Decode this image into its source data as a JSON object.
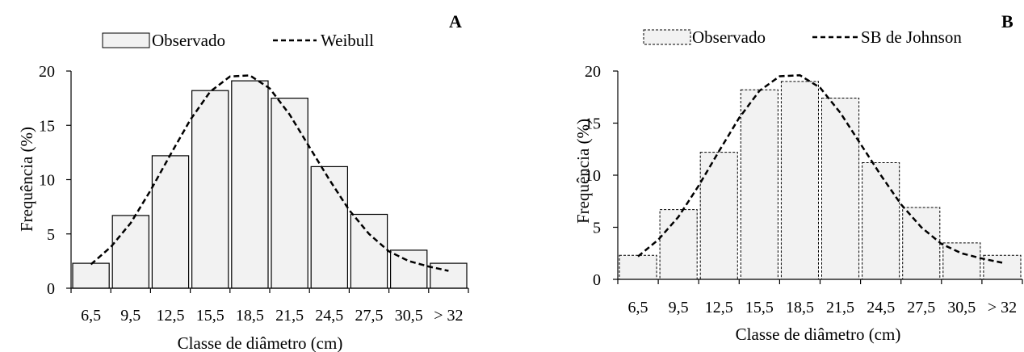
{
  "chart_data": [
    {
      "panel": "A",
      "type": "bar",
      "categories": [
        "6,5",
        "9,5",
        "12,5",
        "15,5",
        "18,5",
        "21,5",
        "24,5",
        "27,5",
        "30,5",
        "> 32"
      ],
      "series": [
        {
          "name": "Observado",
          "values": [
            2.3,
            6.7,
            12.2,
            18.2,
            19.1,
            17.5,
            11.2,
            6.8,
            3.5,
            2.3
          ]
        },
        {
          "name": "Weibull",
          "type": "line",
          "x": [
            1,
            1.5,
            2,
            2.5,
            3,
            3.5,
            4,
            4.5,
            5,
            5.5,
            6,
            6.5,
            7,
            7.5,
            8,
            8.5,
            9,
            9.5,
            10
          ],
          "values": [
            2.2,
            3.8,
            6.0,
            9.0,
            12.3,
            15.5,
            18.1,
            19.5,
            19.6,
            18.4,
            16.0,
            13.0,
            10.0,
            7.2,
            5.0,
            3.4,
            2.5,
            2.0,
            1.6
          ]
        }
      ],
      "xlabel": "Classe de diâmetro (cm)",
      "ylabel": "Frequência (%)",
      "ylim": [
        0,
        20
      ],
      "yticks": [
        0,
        5,
        10,
        15,
        20
      ],
      "bar_style": "solid",
      "legend": "top-center",
      "grid": false
    },
    {
      "panel": "B",
      "type": "bar",
      "categories": [
        "6,5",
        "9,5",
        "12,5",
        "15,5",
        "18,5",
        "21,5",
        "24,5",
        "27,5",
        "30,5",
        "> 32"
      ],
      "series": [
        {
          "name": "Observado",
          "values": [
            2.3,
            6.7,
            12.2,
            18.2,
            19.0,
            17.4,
            11.2,
            6.9,
            3.5,
            2.3
          ]
        },
        {
          "name": "SB de Johnson",
          "type": "line",
          "x": [
            1,
            1.5,
            2,
            2.5,
            3,
            3.5,
            4,
            4.5,
            5,
            5.5,
            6,
            6.5,
            7,
            7.5,
            8,
            8.5,
            9,
            9.5,
            10
          ],
          "values": [
            2.2,
            3.8,
            6.0,
            9.0,
            12.3,
            15.5,
            18.1,
            19.5,
            19.6,
            18.4,
            16.0,
            13.0,
            10.0,
            7.2,
            5.0,
            3.4,
            2.5,
            2.0,
            1.6
          ]
        }
      ],
      "xlabel": "Classe de diâmetro (cm)",
      "ylabel": "Frequência (%)",
      "ylim": [
        0,
        20
      ],
      "yticks": [
        0,
        5,
        10,
        15,
        20
      ],
      "bar_style": "dashed",
      "legend": "top-center",
      "grid": false
    }
  ],
  "colors": {
    "bar_fill": "#f2f2f2",
    "bar_stroke": "#000000",
    "curve": "#000000"
  }
}
